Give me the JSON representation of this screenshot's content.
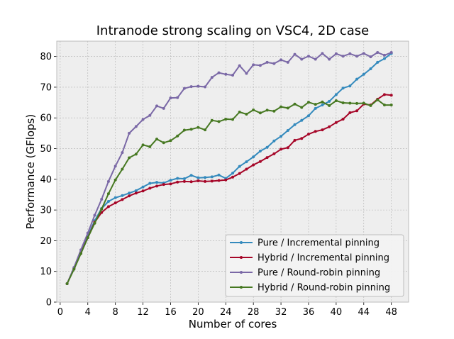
{
  "chart_data": {
    "type": "line",
    "title": "Intranode strong scaling on VSC4, 2D case",
    "xlabel": "Number of cores",
    "ylabel": "Performance (GFlops)",
    "xlim": [
      -0.5,
      50.5
    ],
    "ylim": [
      0,
      85
    ],
    "xticks": [
      0,
      4,
      8,
      12,
      16,
      20,
      24,
      28,
      32,
      36,
      40,
      44,
      48
    ],
    "yticks": [
      0,
      10,
      20,
      30,
      40,
      50,
      60,
      70,
      80
    ],
    "grid": true,
    "legend_position": "lower-right",
    "x": [
      1,
      2,
      3,
      4,
      5,
      6,
      7,
      8,
      9,
      10,
      11,
      12,
      13,
      14,
      15,
      16,
      17,
      18,
      19,
      20,
      21,
      22,
      23,
      24,
      25,
      26,
      27,
      28,
      29,
      30,
      31,
      32,
      33,
      34,
      35,
      36,
      37,
      38,
      39,
      40,
      41,
      42,
      43,
      44,
      45,
      46,
      47,
      48
    ],
    "series": [
      {
        "name": "Pure / Incremental pinning",
        "color": "#348ABD",
        "values": [
          6,
          11,
          16,
          21.5,
          26.5,
          30.5,
          32.8,
          34,
          34.7,
          35.5,
          36.3,
          37.5,
          38.7,
          39,
          38.8,
          39.7,
          40.3,
          40.2,
          41.3,
          40.5,
          40.6,
          40.8,
          41.4,
          40.3,
          42,
          44.2,
          45.7,
          47.3,
          49.2,
          50.4,
          52.5,
          54,
          55.9,
          57.8,
          59.2,
          60.7,
          63.1,
          64.2,
          65.4,
          67.6,
          69.7,
          70.4,
          72.6,
          74.2,
          76,
          78.1,
          79.3,
          81
        ]
      },
      {
        "name": "Hybrid / Incremental pinning",
        "color": "#A60628",
        "values": [
          6,
          11,
          16,
          21,
          26,
          29.2,
          31.1,
          32.3,
          33.4,
          34.6,
          35.5,
          36.2,
          37.1,
          37.8,
          38.3,
          38.5,
          39.1,
          39.3,
          39.2,
          39.5,
          39.3,
          39.4,
          39.6,
          39.8,
          40.7,
          41.9,
          43.3,
          44.7,
          45.8,
          47.1,
          48.3,
          49.8,
          50.3,
          52.7,
          53.3,
          54.7,
          55.6,
          56.1,
          57.1,
          58.5,
          59.6,
          61.7,
          62.3,
          64.5,
          64.2,
          66.1,
          67.6,
          67.4
        ]
      },
      {
        "name": "Pure / Round-robin pinning",
        "color": "#7A68A6",
        "values": [
          6,
          11.3,
          17,
          22.5,
          28.3,
          33.5,
          39.3,
          44.3,
          48.7,
          55,
          57.2,
          59.5,
          60.8,
          63.9,
          63.1,
          66.5,
          66.6,
          69.6,
          70.2,
          70.3,
          70.1,
          73.2,
          74.7,
          74.2,
          73.9,
          77,
          74.5,
          77.3,
          77.1,
          78.1,
          77.7,
          78.9,
          78.1,
          80.7,
          79.1,
          80.1,
          79.1,
          81,
          79.1,
          80.9,
          80.1,
          80.9,
          80.1,
          81,
          79.9,
          81.3,
          80.4,
          81.3
        ]
      },
      {
        "name": "Hybrid / Round-robin pinning",
        "color": "#467821",
        "values": [
          6,
          10.7,
          15.8,
          21,
          25.7,
          30.3,
          35.3,
          39.8,
          43.3,
          47,
          48.2,
          51.2,
          50.6,
          53.1,
          51.9,
          52.6,
          54.1,
          56,
          56.3,
          56.9,
          56.1,
          59.2,
          58.8,
          59.6,
          59.5,
          61.9,
          61.2,
          62.6,
          61.6,
          62.5,
          62.2,
          63.6,
          63.2,
          64.5,
          63.4,
          65.1,
          64.4,
          65.2,
          64,
          65.6,
          64.9,
          64.8,
          64.7,
          64.8,
          64,
          65.9,
          64.2,
          64.2
        ]
      }
    ]
  }
}
